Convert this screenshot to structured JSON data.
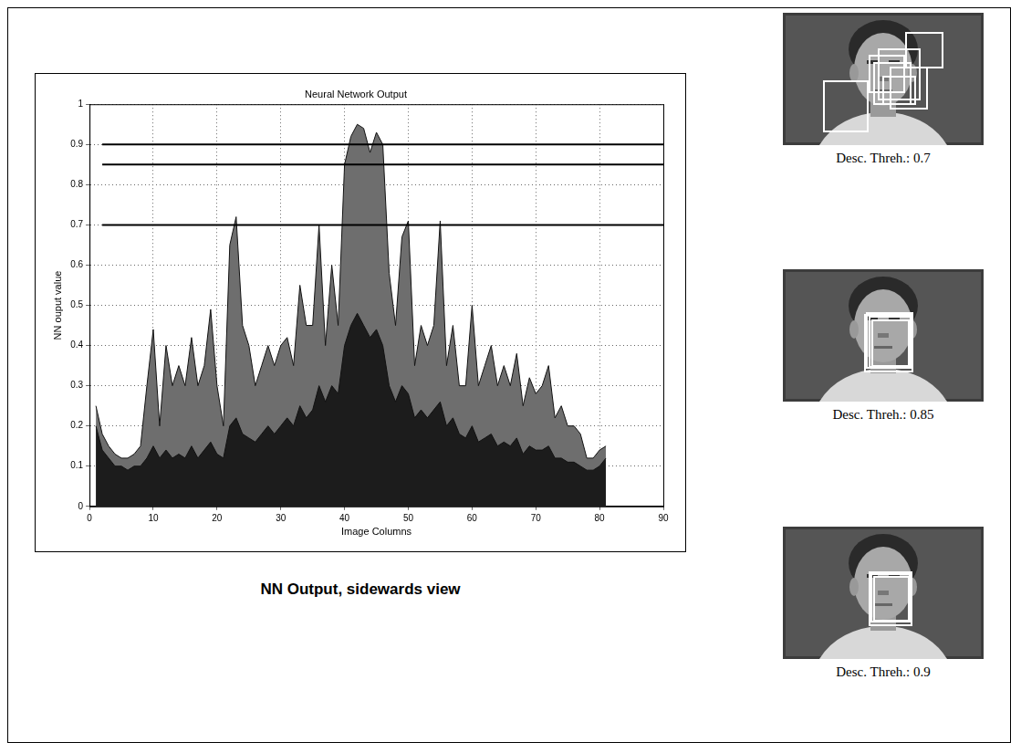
{
  "chart_data": {
    "type": "area",
    "title": "Neural Network Output",
    "x_label": "Image Columns",
    "y_label": "NN ouput value",
    "x": [
      1,
      2,
      3,
      4,
      5,
      6,
      7,
      8,
      9,
      10,
      11,
      12,
      13,
      14,
      15,
      16,
      17,
      18,
      19,
      20,
      21,
      22,
      23,
      24,
      25,
      26,
      27,
      28,
      29,
      30,
      31,
      32,
      33,
      34,
      35,
      36,
      37,
      38,
      39,
      40,
      41,
      42,
      43,
      44,
      45,
      46,
      47,
      48,
      49,
      50,
      51,
      52,
      53,
      54,
      55,
      56,
      57,
      58,
      59,
      60,
      61,
      62,
      63,
      64,
      65,
      66,
      67,
      68,
      69,
      70,
      71,
      72,
      73,
      74,
      75,
      76,
      77,
      78,
      79,
      80,
      81
    ],
    "series": [
      {
        "type": "area",
        "color": "#6e6e6e",
        "values": [
          0.25,
          0.18,
          0.15,
          0.13,
          0.12,
          0.12,
          0.13,
          0.15,
          0.3,
          0.44,
          0.2,
          0.4,
          0.3,
          0.35,
          0.3,
          0.42,
          0.3,
          0.35,
          0.49,
          0.3,
          0.2,
          0.65,
          0.72,
          0.45,
          0.4,
          0.3,
          0.35,
          0.4,
          0.35,
          0.4,
          0.42,
          0.35,
          0.55,
          0.45,
          0.45,
          0.7,
          0.4,
          0.6,
          0.45,
          0.85,
          0.92,
          0.95,
          0.94,
          0.88,
          0.93,
          0.9,
          0.58,
          0.45,
          0.67,
          0.71,
          0.35,
          0.45,
          0.4,
          0.45,
          0.71,
          0.35,
          0.45,
          0.3,
          0.3,
          0.5,
          0.3,
          0.35,
          0.4,
          0.3,
          0.35,
          0.3,
          0.38,
          0.25,
          0.32,
          0.28,
          0.3,
          0.35,
          0.22,
          0.25,
          0.2,
          0.2,
          0.18,
          0.12,
          0.12,
          0.14,
          0.15
        ]
      },
      {
        "type": "area",
        "color": "#1c1c1c",
        "values": [
          0.2,
          0.14,
          0.12,
          0.1,
          0.1,
          0.09,
          0.1,
          0.1,
          0.12,
          0.15,
          0.12,
          0.14,
          0.12,
          0.13,
          0.12,
          0.15,
          0.12,
          0.14,
          0.16,
          0.13,
          0.12,
          0.2,
          0.22,
          0.18,
          0.17,
          0.16,
          0.18,
          0.2,
          0.18,
          0.2,
          0.22,
          0.2,
          0.25,
          0.22,
          0.24,
          0.3,
          0.26,
          0.3,
          0.28,
          0.4,
          0.45,
          0.48,
          0.45,
          0.42,
          0.44,
          0.4,
          0.3,
          0.26,
          0.3,
          0.28,
          0.22,
          0.24,
          0.22,
          0.24,
          0.26,
          0.2,
          0.22,
          0.18,
          0.17,
          0.2,
          0.16,
          0.17,
          0.18,
          0.15,
          0.16,
          0.15,
          0.17,
          0.13,
          0.15,
          0.14,
          0.14,
          0.15,
          0.12,
          0.12,
          0.11,
          0.11,
          0.1,
          0.09,
          0.09,
          0.1,
          0.12
        ]
      },
      {
        "type": "line",
        "color": "#000000",
        "x": [
          2,
          91
        ],
        "values": [
          0.9,
          0.9
        ]
      },
      {
        "type": "line",
        "color": "#000000",
        "x": [
          2,
          91
        ],
        "values": [
          0.85,
          0.85
        ]
      },
      {
        "type": "line",
        "color": "#000000",
        "x": [
          2,
          91
        ],
        "values": [
          0.7,
          0.7
        ]
      }
    ],
    "xlim": [
      0,
      90
    ],
    "xticks": [
      0,
      10,
      20,
      30,
      40,
      50,
      60,
      70,
      80,
      90
    ],
    "ylim": [
      0,
      1
    ],
    "yticks": [
      0,
      0.1,
      0.2,
      0.3,
      0.4,
      0.5,
      0.6,
      0.7,
      0.8,
      0.9,
      1
    ],
    "grid": true
  },
  "caption": "NN Output, sidewards view",
  "panels": [
    {
      "caption": "Desc. Threh.: 0.7"
    },
    {
      "caption": "Desc. Threh.: 0.85"
    },
    {
      "caption": "Desc. Threh.: 0.9"
    }
  ]
}
